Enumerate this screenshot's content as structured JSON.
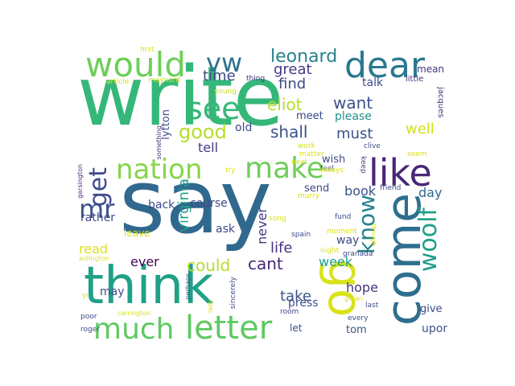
{
  "words": [
    {
      "text": "write",
      "color": "#35b779"
    },
    {
      "text": "say",
      "color": "#31688e"
    },
    {
      "text": "think",
      "color": "#1fa187"
    },
    {
      "text": "come",
      "color": "#2e6e8e"
    },
    {
      "text": "go",
      "color": "#d8e219"
    },
    {
      "text": "like",
      "color": "#482878"
    },
    {
      "text": "letter",
      "color": "#5ec962"
    },
    {
      "text": "much",
      "color": "#5ec962"
    },
    {
      "text": "would",
      "color": "#6ece58"
    },
    {
      "text": "dear",
      "color": "#2a788e"
    },
    {
      "text": "see",
      "color": "#35b779"
    },
    {
      "text": "make",
      "color": "#6ece58"
    },
    {
      "text": "nation",
      "color": "#86d549"
    },
    {
      "text": "woolf",
      "color": "#1f9e89"
    },
    {
      "text": "know",
      "color": "#26828e"
    },
    {
      "text": "vw",
      "color": "#2c728e"
    },
    {
      "text": "get",
      "color": "#3e4a89"
    },
    {
      "text": "mr",
      "color": "#3b528b"
    },
    {
      "text": "good",
      "color": "#b5de2b"
    },
    {
      "text": "leonard",
      "color": "#26828e"
    },
    {
      "text": "great",
      "color": "#443983"
    },
    {
      "text": "time",
      "color": "#3e4a89"
    },
    {
      "text": "find",
      "color": "#3e4a89"
    },
    {
      "text": "eliot",
      "color": "#b5de2b"
    },
    {
      "text": "want",
      "color": "#3b528b"
    },
    {
      "text": "shall",
      "color": "#3b528b"
    },
    {
      "text": "must",
      "color": "#3b528b"
    },
    {
      "text": "well",
      "color": "#d0e11c"
    },
    {
      "text": "tell",
      "color": "#443983"
    },
    {
      "text": "virginia",
      "color": "#1fa187"
    },
    {
      "text": "could",
      "color": "#b5de2b"
    },
    {
      "text": "cant",
      "color": "#482878"
    },
    {
      "text": "ever",
      "color": "#440154"
    },
    {
      "text": "take",
      "color": "#3b528b"
    },
    {
      "text": "read",
      "color": "#d8e219"
    },
    {
      "text": "never",
      "color": "#443983"
    },
    {
      "text": "life",
      "color": "#46327e"
    },
    {
      "text": "week",
      "color": "#1f9e89"
    },
    {
      "text": "hope",
      "color": "#46327e"
    },
    {
      "text": "book",
      "color": "#3b528b"
    },
    {
      "text": "day",
      "color": "#31688e"
    },
    {
      "text": "way",
      "color": "#3e4a89"
    },
    {
      "text": "course",
      "color": "#3e4a89"
    },
    {
      "text": "back",
      "color": "#3e4a89"
    },
    {
      "text": "ask",
      "color": "#3e4a89"
    },
    {
      "text": "may",
      "color": "#3e4a89"
    },
    {
      "text": "rather",
      "color": "#3e4a89"
    },
    {
      "text": "please",
      "color": "#21918c"
    },
    {
      "text": "talk",
      "color": "#3e4a89"
    },
    {
      "text": "old",
      "color": "#3e4a89"
    },
    {
      "text": "lytton",
      "color": "#3e4a89"
    },
    {
      "text": "meet",
      "color": "#3e4a89"
    },
    {
      "text": "give",
      "color": "#3e4a89"
    },
    {
      "text": "upon",
      "color": "#3b528b"
    },
    {
      "text": "press",
      "color": "#3b528b"
    },
    {
      "text": "let",
      "color": "#3e4a89"
    },
    {
      "text": "tom",
      "color": "#3b528b"
    },
    {
      "text": "send",
      "color": "#3e4a89"
    },
    {
      "text": "wish",
      "color": "#3e4a89"
    },
    {
      "text": "leave",
      "color": "#d8e219"
    },
    {
      "text": "mean",
      "color": "#46327e"
    },
    {
      "text": "little",
      "color": "#46327e"
    },
    {
      "text": "jacques",
      "color": "#46327e"
    },
    {
      "text": "first",
      "color": "#d8e219"
    },
    {
      "text": "article",
      "color": "#d8e219"
    },
    {
      "text": "maynard",
      "color": "#c7e020"
    },
    {
      "text": "young",
      "color": "#c7e020"
    },
    {
      "text": "thing",
      "color": "#46327e"
    },
    {
      "text": "clive",
      "color": "#3e4a89"
    },
    {
      "text": "seem",
      "color": "#d8e219"
    },
    {
      "text": "something",
      "color": "#46327e"
    },
    {
      "text": "work",
      "color": "#d8e219"
    },
    {
      "text": "matter",
      "color": "#d8e219"
    },
    {
      "text": "next",
      "color": "#d8e219"
    },
    {
      "text": "feel",
      "color": "#3e4a89"
    },
    {
      "text": "try",
      "color": "#d8e219"
    },
    {
      "text": "always",
      "color": "#d8e219"
    },
    {
      "text": "keep",
      "color": "#3e4a89"
    },
    {
      "text": "friend",
      "color": "#3e4a89"
    },
    {
      "text": "garsington",
      "color": "#46327e"
    },
    {
      "text": "murry",
      "color": "#d8e219"
    },
    {
      "text": "song",
      "color": "#d8e219"
    },
    {
      "text": "fund",
      "color": "#3e4a89"
    },
    {
      "text": "though",
      "color": "#d8e219"
    },
    {
      "text": "spain",
      "color": "#3e4a89"
    },
    {
      "text": "moment",
      "color": "#d8e219"
    },
    {
      "text": "night",
      "color": "#d8e219"
    },
    {
      "text": "granada",
      "color": "#3e4a89"
    },
    {
      "text": "aldington",
      "color": "#d8e219"
    },
    {
      "text": "perhaps",
      "color": "#3e4a89"
    },
    {
      "text": "lady",
      "color": "#d8e219"
    },
    {
      "text": "sincerely",
      "color": "#3e4a89"
    },
    {
      "text": "room",
      "color": "#3e4a89"
    },
    {
      "text": "green",
      "color": "#d8e219"
    },
    {
      "text": "last",
      "color": "#3e4a89"
    },
    {
      "text": "every",
      "color": "#3e4a89"
    },
    {
      "text": "yr",
      "color": "#d8e219"
    },
    {
      "text": "carrington",
      "color": "#d8e219"
    },
    {
      "text": "poor",
      "color": "#3e4a89"
    },
    {
      "text": "roger",
      "color": "#3e4a89"
    }
  ]
}
